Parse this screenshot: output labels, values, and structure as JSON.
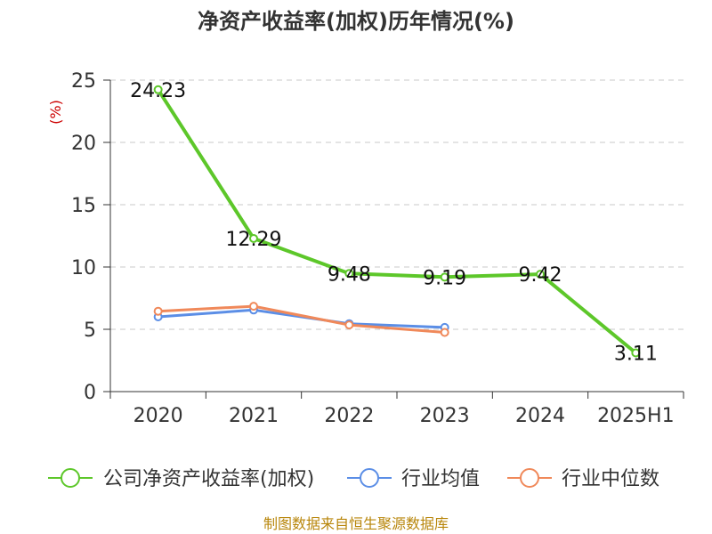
{
  "chart_data": {
    "type": "line",
    "title": "净资产收益率(加权)历年情况(%)",
    "ylabel": "(%)",
    "xlabel": "",
    "ylim": [
      0,
      25
    ],
    "yticks": [
      0,
      5,
      10,
      15,
      20,
      25
    ],
    "grid": true,
    "legend_position": "bottom",
    "categories": [
      "2020",
      "2021",
      "2022",
      "2023",
      "2024",
      "2025H1"
    ],
    "series": [
      {
        "name": "公司净资产收益率(加权)",
        "color": "#5dc72a",
        "values": [
          24.23,
          12.29,
          9.48,
          9.19,
          9.42,
          3.11
        ],
        "labels": [
          "24.23",
          "12.29",
          "9.48",
          "9.19",
          "9.42",
          "3.11"
        ]
      },
      {
        "name": "行业均值",
        "color": "#5b8ee6",
        "values": [
          6.0,
          6.55,
          5.45,
          5.15,
          null,
          null
        ]
      },
      {
        "name": "行业中位数",
        "color": "#f0895a",
        "values": [
          6.45,
          6.85,
          5.35,
          4.75,
          null,
          null
        ]
      }
    ],
    "source": "制图数据来自恒生聚源数据库"
  }
}
